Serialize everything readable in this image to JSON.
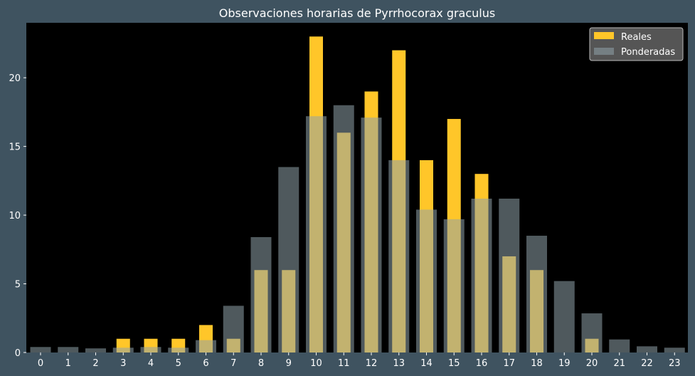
{
  "chart_data": {
    "type": "bar",
    "title": "Observaciones horarias de Pyrrhocorax graculus",
    "xlabel": "",
    "ylabel": "",
    "categories": [
      "0",
      "1",
      "2",
      "3",
      "4",
      "5",
      "6",
      "7",
      "8",
      "9",
      "10",
      "11",
      "12",
      "13",
      "14",
      "15",
      "16",
      "17",
      "18",
      "19",
      "20",
      "21",
      "22",
      "23"
    ],
    "ylim": [
      0,
      24
    ],
    "yticks": [
      0,
      5,
      10,
      15,
      20
    ],
    "grid": false,
    "legend_position": "top-right",
    "series": [
      {
        "name": "Reales",
        "color": "#ffc629",
        "values": [
          0,
          0,
          0,
          1,
          1,
          1,
          2,
          1,
          6,
          6,
          23,
          16,
          19,
          22,
          14,
          17,
          13,
          7,
          6,
          0,
          1,
          0,
          0,
          0
        ]
      },
      {
        "name": "Ponderadas",
        "color": "#8fa3aa",
        "values": [
          0.4,
          0.4,
          0.3,
          0.35,
          0.4,
          0.35,
          0.9,
          3.4,
          8.4,
          13.5,
          17.2,
          18.0,
          17.1,
          14.0,
          10.4,
          9.7,
          11.2,
          11.2,
          8.5,
          5.2,
          2.85,
          0.95,
          0.45,
          0.35
        ]
      }
    ]
  }
}
